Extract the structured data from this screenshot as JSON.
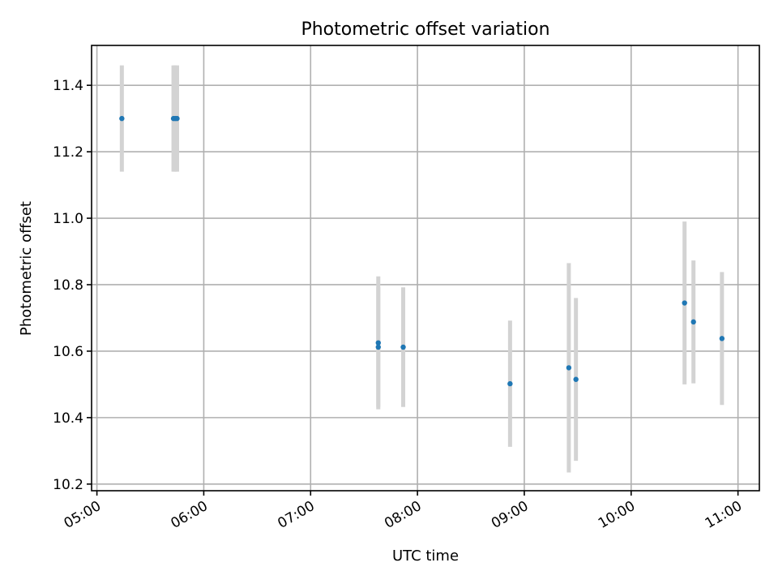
{
  "chart_data": {
    "type": "scatter",
    "title": "Photometric offset variation",
    "xlabel": "UTC time",
    "ylabel": "Photometric offset",
    "xlim": [
      "04:57",
      "11:12"
    ],
    "ylim": [
      10.18,
      11.52
    ],
    "x_ticks": [
      "05:00",
      "06:00",
      "07:00",
      "08:00",
      "09:00",
      "10:00",
      "11:00"
    ],
    "y_ticks": [
      "10.2",
      "10.4",
      "10.6",
      "10.8",
      "11.0",
      "11.2",
      "11.4"
    ],
    "grid": true,
    "points": [
      {
        "x": "05:14",
        "y": 11.3,
        "err": 0.16
      },
      {
        "x": "05:43",
        "y": 11.3,
        "err": 0.16
      },
      {
        "x": "05:44",
        "y": 11.3,
        "err": 0.16
      },
      {
        "x": "05:45",
        "y": 11.3,
        "err": 0.16
      },
      {
        "x": "07:38",
        "y": 10.625,
        "err": 0.2
      },
      {
        "x": "07:38",
        "y": 10.612,
        "err": 0.18
      },
      {
        "x": "07:52",
        "y": 10.612,
        "err": 0.18
      },
      {
        "x": "08:52",
        "y": 10.502,
        "err": 0.19
      },
      {
        "x": "09:25",
        "y": 10.55,
        "err": 0.315
      },
      {
        "x": "09:29",
        "y": 10.515,
        "err": 0.245
      },
      {
        "x": "10:30",
        "y": 10.745,
        "err": 0.245
      },
      {
        "x": "10:35",
        "y": 10.688,
        "err": 0.185
      },
      {
        "x": "10:51",
        "y": 10.638,
        "err": 0.2
      }
    ]
  }
}
